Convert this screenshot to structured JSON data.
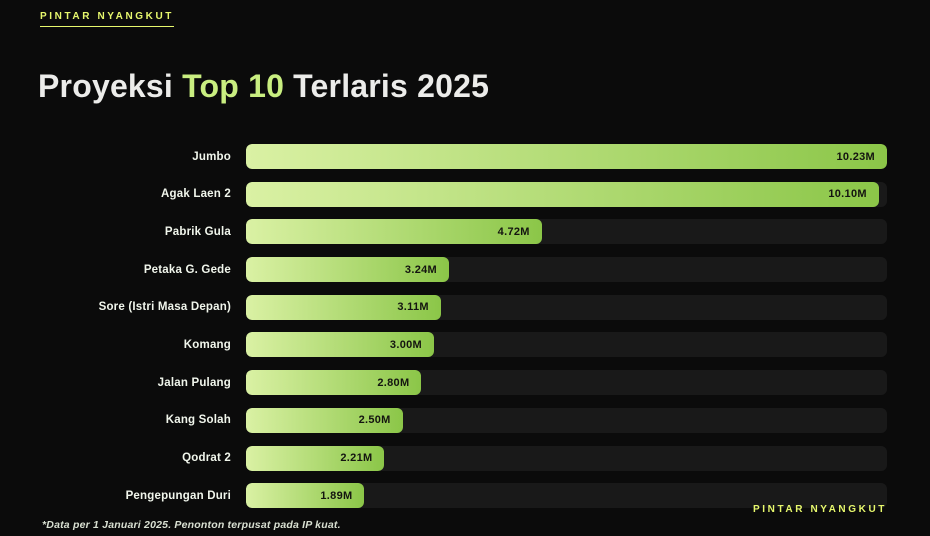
{
  "brand": {
    "top": "PINTAR NYANGKUT",
    "bottom": "PINTAR NYANGKUT"
  },
  "title": {
    "prefix": "Proyeksi ",
    "highlight": "Top 10",
    "suffix": " Terlaris 2025"
  },
  "footnote": "*Data per 1 Januari 2025. Penonton terpusat pada IP kuat.",
  "colors": {
    "background": "#0b0b0b",
    "track": "#191919",
    "bar_gradient_start": "#daf1a4",
    "bar_gradient_end": "#8bc648",
    "title_highlight": "#c9ee80",
    "brand_accent": "#e7f86d",
    "label_text": "#f1f6ec",
    "value_text": "#141410"
  },
  "chart_data": {
    "type": "bar",
    "orientation": "horizontal",
    "title": "Proyeksi Top 10 Terlaris 2025",
    "xlabel": "",
    "ylabel": "",
    "xlim": [
      0,
      10.23
    ],
    "grid": false,
    "legend": false,
    "unit": "millions of viewers",
    "categories": [
      "Jumbo",
      "Agak Laen 2",
      "Pabrik Gula",
      "Petaka G. Gede",
      "Sore (Istri Masa Depan)",
      "Komang",
      "Jalan Pulang",
      "Kang Solah",
      "Qodrat 2",
      "Pengepungan Duri"
    ],
    "values": [
      10.23,
      10.1,
      4.72,
      3.24,
      3.11,
      3.0,
      2.8,
      2.5,
      2.21,
      1.89
    ],
    "value_labels": [
      "10.23M",
      "10.10M",
      "4.72M",
      "3.24M",
      "3.11M",
      "3.00M",
      "2.80M",
      "2.50M",
      "2.21M",
      "1.89M"
    ],
    "max_value": 10.23
  }
}
